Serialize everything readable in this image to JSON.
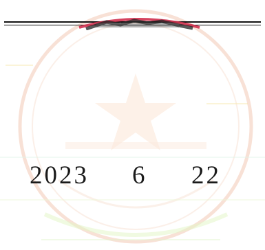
{
  "document": {
    "date": {
      "year": "2023",
      "month": "6",
      "day": "22"
    },
    "seal": {
      "shape": "round-stamp",
      "ink_color": "#e8a08a",
      "edge_color": "#d0304e"
    },
    "colors": {
      "text": "#1a1a1a",
      "rule": "#111111",
      "background": "#ffffff"
    }
  }
}
